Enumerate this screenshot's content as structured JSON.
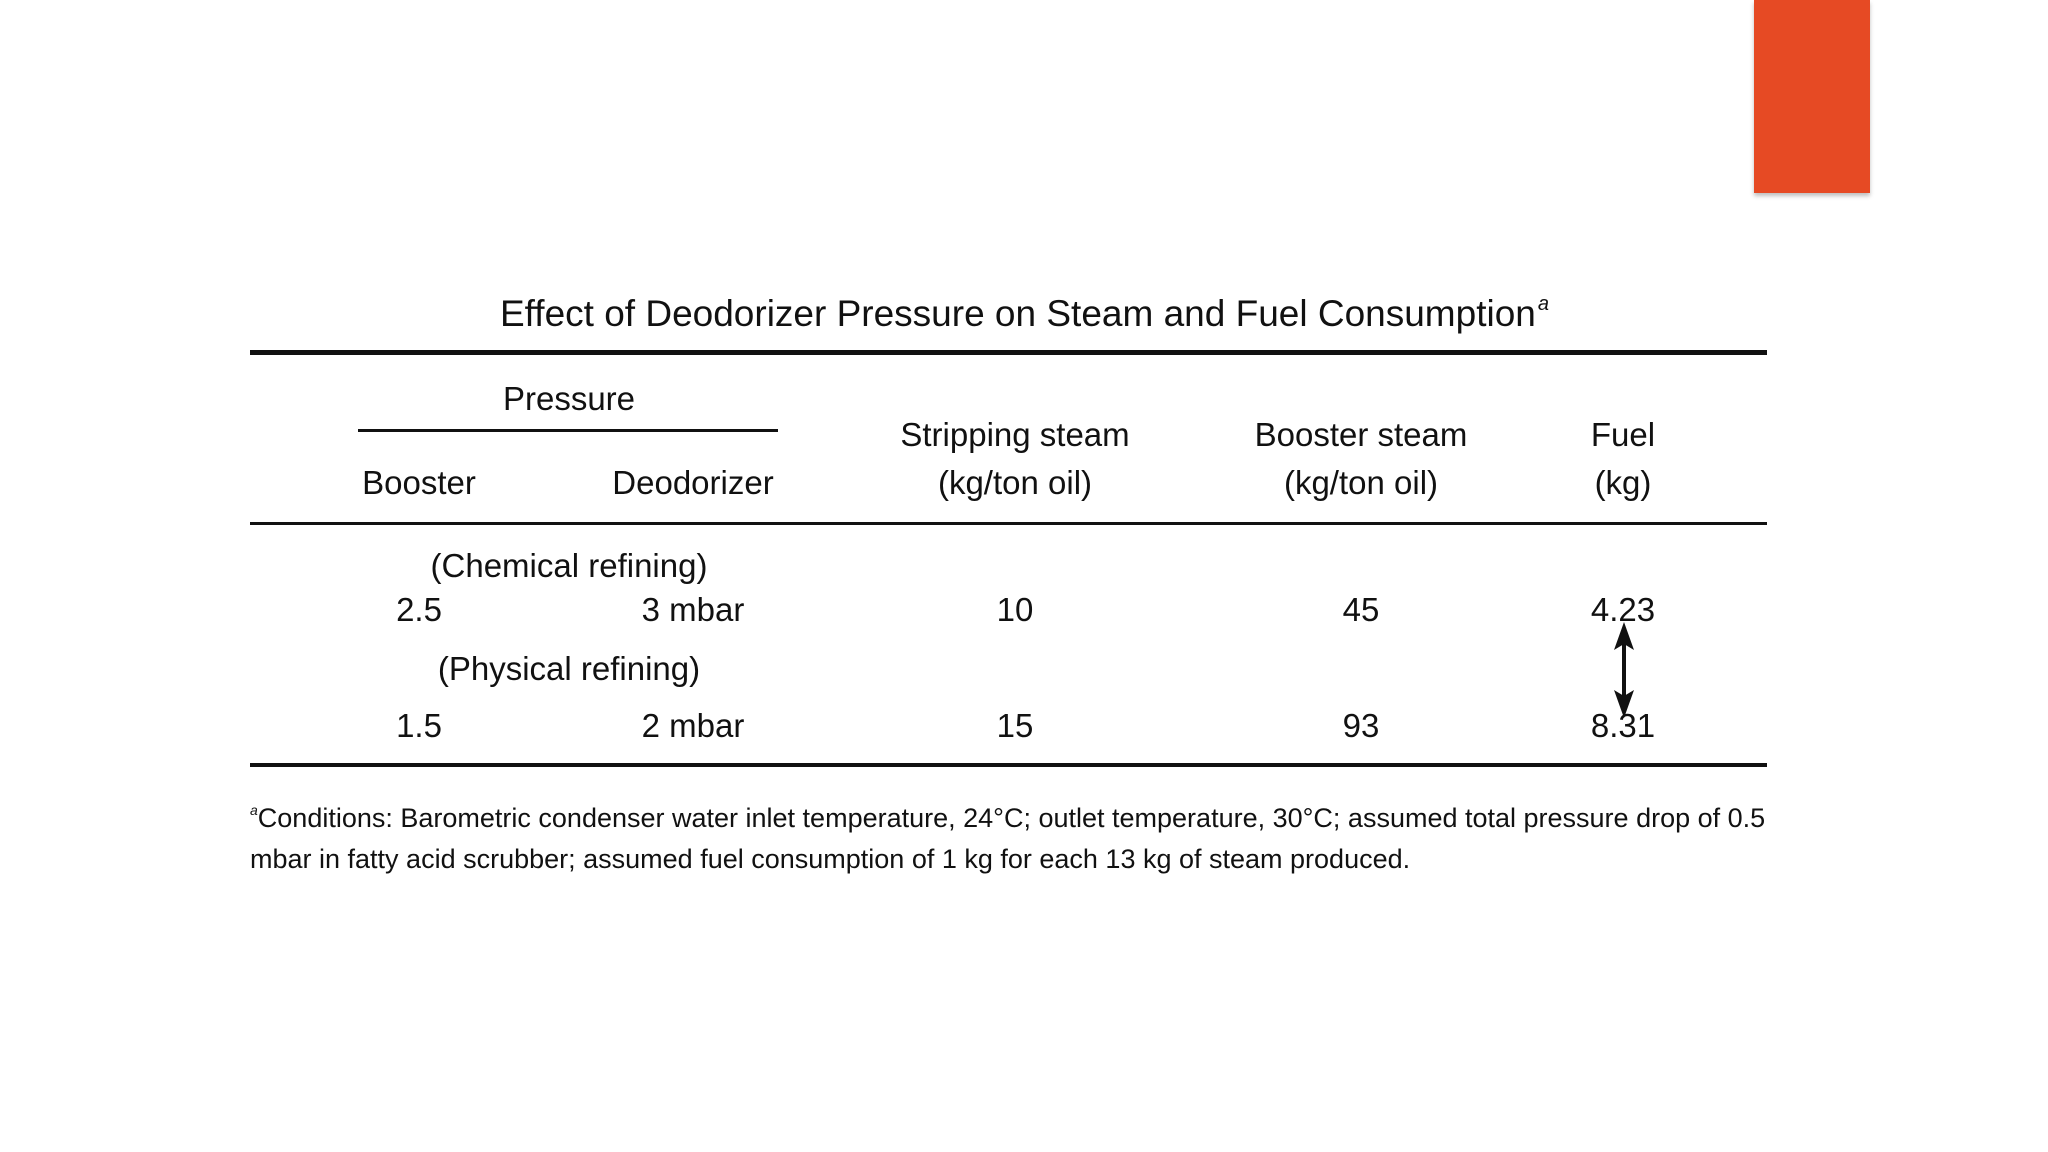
{
  "slide": {
    "accent_color": "#E64A24"
  },
  "table": {
    "title": "Effect of Deodorizer Pressure on Steam and Fuel Consumption",
    "title_note_marker": "a",
    "group_header": "Pressure",
    "columns": {
      "booster": "Booster",
      "deodorizer": "Deodorizer",
      "stripping_line1": "Stripping steam",
      "stripping_line2": "(kg/ton oil)",
      "booster_steam_line1": "Booster steam",
      "booster_steam_line2": "(kg/ton oil)",
      "fuel_line1": "Fuel",
      "fuel_line2": "(kg)"
    },
    "sections": [
      {
        "label": "(Chemical refining)",
        "booster": "2.5",
        "deodorizer": "3 mbar",
        "stripping_steam": "10",
        "booster_steam": "45",
        "fuel": "4.23"
      },
      {
        "label": "(Physical refining)",
        "booster": "1.5",
        "deodorizer": "2 mbar",
        "stripping_steam": "15",
        "booster_steam": "93",
        "fuel": "8.31"
      }
    ],
    "footnote_marker": "a",
    "footnote": "Conditions: Barometric condenser water inlet temperature, 24°C; outlet temperature, 30°C; assumed total pressure drop of 0.5 mbar in fatty acid scrubber; assumed fuel consumption of 1 kg for each 13 kg of steam produced."
  },
  "annotation": {
    "arrow_icon": "double-headed-arrow-icon"
  }
}
